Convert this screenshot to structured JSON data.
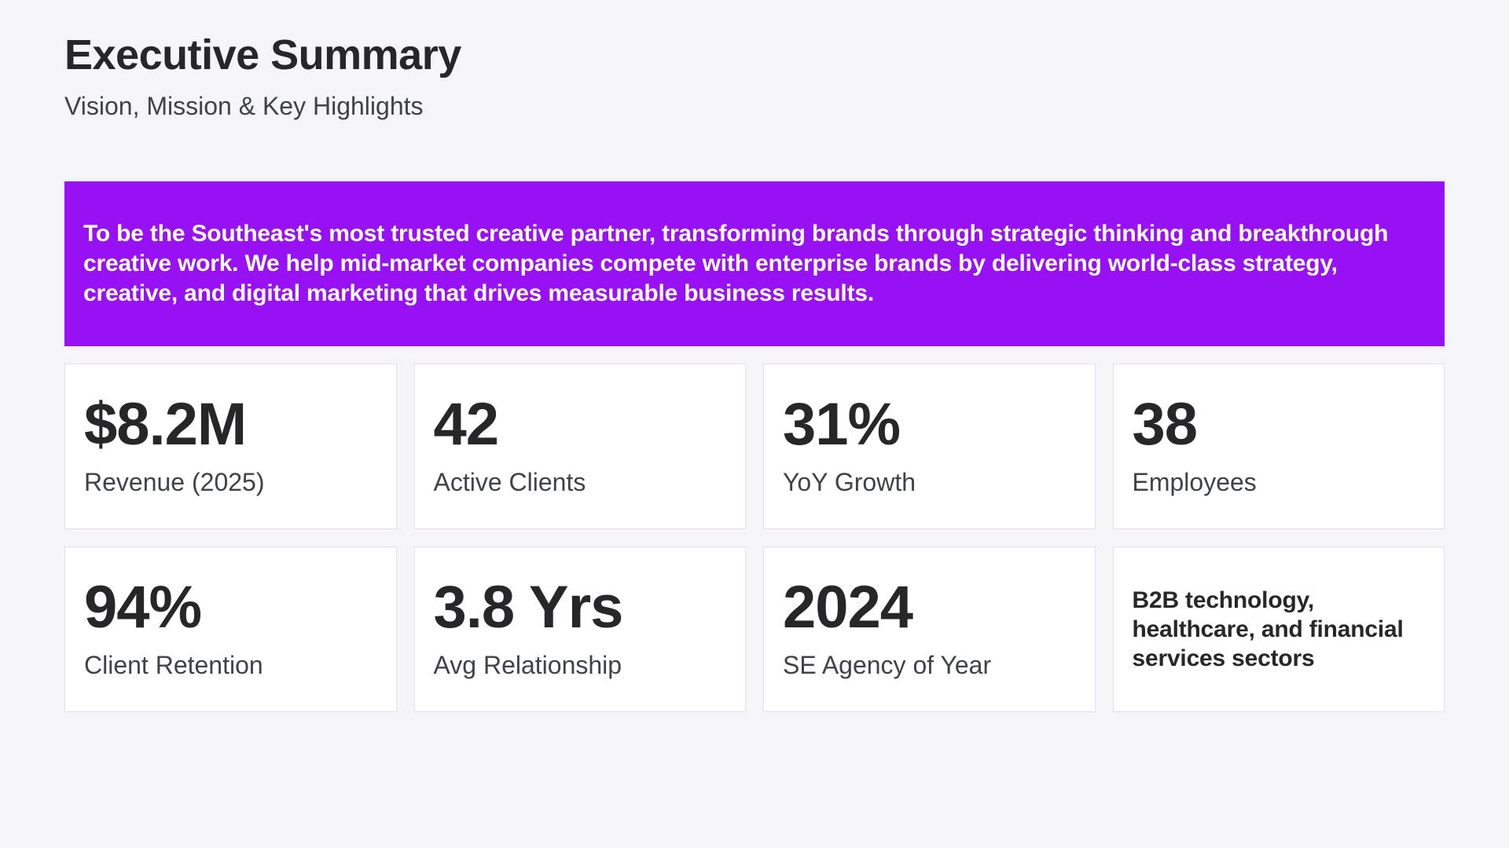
{
  "page": {
    "title": "Executive Summary",
    "subtitle": "Vision, Mission & Key Highlights"
  },
  "vision_banner": {
    "text": "To be the Southeast's most trusted creative partner, transforming brands through strategic thinking and breakthrough creative work. We help mid-market companies compete with enterprise brands by delivering world-class strategy, creative, and digital marketing that drives measurable business results."
  },
  "stats": [
    {
      "value": "$8.2M",
      "label": "Revenue (2025)"
    },
    {
      "value": "42",
      "label": "Active Clients"
    },
    {
      "value": "31%",
      "label": "YoY Growth"
    },
    {
      "value": "38",
      "label": "Employees"
    },
    {
      "value": "94%",
      "label": "Client Retention"
    },
    {
      "value": "3.8 Yrs",
      "label": "Avg Relationship"
    },
    {
      "value": "2024",
      "label": "SE Agency of Year"
    }
  ],
  "industry_card": {
    "text": "B2B technology, healthcare, and financial services sectors"
  },
  "colors": {
    "page_background": "#F5F4F6",
    "banner_background": "#9811F4",
    "banner_text": "#FFFFFF",
    "card_background": "#FFFFFF",
    "card_border": "#E9DBF4",
    "value_text": "#27272A",
    "label_text": "#3F4247"
  }
}
